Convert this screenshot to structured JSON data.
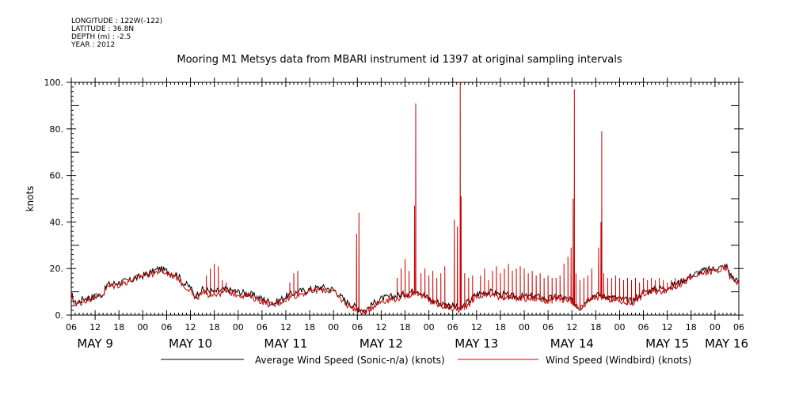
{
  "meta": {
    "longitude": "LONGITUDE : 122W(-122)",
    "latitude": "LATITUDE : 36.8N",
    "depth": "DEPTH (m) : -2.5",
    "year": "YEAR : 2012"
  },
  "chart_data": {
    "type": "line",
    "title": "Mooring M1 Metsys data from MBARI instrument id 1397 at original sampling intervals",
    "ylabel": "knots",
    "xlabel": "",
    "ylim": [
      0,
      100
    ],
    "yticks": [
      "0.",
      "20.",
      "40.",
      "60.",
      "80.",
      "100."
    ],
    "xlim_hours": [
      0,
      168
    ],
    "x_start": "2012-05-09T06:00",
    "hour_ticks": [
      "06",
      "12",
      "18",
      "00",
      "06",
      "12",
      "18",
      "00",
      "06",
      "12",
      "18",
      "00",
      "06",
      "12",
      "18",
      "00",
      "06",
      "12",
      "18",
      "00",
      "06",
      "12",
      "18",
      "00",
      "06",
      "12",
      "18",
      "00",
      "06"
    ],
    "day_labels": [
      {
        "label": "MAY   9",
        "hour": 6
      },
      {
        "label": "MAY 10",
        "hour": 30
      },
      {
        "label": "MAY 11",
        "hour": 54
      },
      {
        "label": "MAY 12",
        "hour": 78
      },
      {
        "label": "MAY 13",
        "hour": 102
      },
      {
        "label": "MAY 14",
        "hour": 126
      },
      {
        "label": "MAY 15",
        "hour": 150
      },
      {
        "label": "MAY 16",
        "hour": 168
      }
    ],
    "grid": false,
    "legend_position": "bottom",
    "series": [
      {
        "name": "Average Wind Speed (Sonic-n/a) (knots)",
        "color": "#000000",
        "base": [
          [
            0,
            9
          ],
          [
            1,
            5
          ],
          [
            3,
            7
          ],
          [
            6,
            8
          ],
          [
            8,
            9
          ],
          [
            9,
            13
          ],
          [
            12,
            14
          ],
          [
            15,
            15
          ],
          [
            18,
            17
          ],
          [
            21,
            19
          ],
          [
            22,
            20
          ],
          [
            24,
            19
          ],
          [
            27,
            17
          ],
          [
            28,
            14
          ],
          [
            30,
            12
          ],
          [
            31,
            8
          ],
          [
            33,
            11
          ],
          [
            36,
            10
          ],
          [
            39,
            11
          ],
          [
            42,
            10
          ],
          [
            45,
            9
          ],
          [
            48,
            7
          ],
          [
            51,
            5
          ],
          [
            54,
            8
          ],
          [
            57,
            10
          ],
          [
            60,
            11
          ],
          [
            63,
            12
          ],
          [
            66,
            11
          ],
          [
            69,
            6
          ],
          [
            72,
            3
          ],
          [
            74,
            2
          ],
          [
            76,
            5
          ],
          [
            78,
            7
          ],
          [
            81,
            8
          ],
          [
            84,
            9
          ],
          [
            87,
            11
          ],
          [
            90,
            7
          ],
          [
            93,
            5
          ],
          [
            96,
            4
          ],
          [
            98,
            3
          ],
          [
            100,
            6
          ],
          [
            102,
            9
          ],
          [
            105,
            10
          ],
          [
            108,
            9
          ],
          [
            111,
            8
          ],
          [
            114,
            8
          ],
          [
            117,
            8
          ],
          [
            120,
            7
          ],
          [
            123,
            8
          ],
          [
            126,
            6
          ],
          [
            128,
            3
          ],
          [
            130,
            7
          ],
          [
            132,
            9
          ],
          [
            135,
            8
          ],
          [
            138,
            7
          ],
          [
            141,
            6
          ],
          [
            144,
            10
          ],
          [
            147,
            11
          ],
          [
            150,
            12
          ],
          [
            153,
            14
          ],
          [
            156,
            17
          ],
          [
            159,
            19
          ],
          [
            162,
            20
          ],
          [
            165,
            21
          ],
          [
            166,
            17
          ],
          [
            168,
            14
          ]
        ],
        "peaks": [],
        "ticks": []
      },
      {
        "name": "Wind Speed (Windbird) (knots)",
        "color": "#cc0000",
        "base": [
          [
            0,
            9
          ],
          [
            1,
            4
          ],
          [
            3,
            6
          ],
          [
            6,
            8
          ],
          [
            8,
            9
          ],
          [
            9,
            12
          ],
          [
            12,
            13
          ],
          [
            15,
            15
          ],
          [
            18,
            17
          ],
          [
            21,
            18
          ],
          [
            22,
            19
          ],
          [
            24,
            18
          ],
          [
            27,
            16
          ],
          [
            28,
            13
          ],
          [
            30,
            11
          ],
          [
            31,
            7
          ],
          [
            33,
            9
          ],
          [
            36,
            9
          ],
          [
            39,
            10
          ],
          [
            42,
            9
          ],
          [
            45,
            8
          ],
          [
            48,
            6
          ],
          [
            51,
            4
          ],
          [
            54,
            7
          ],
          [
            57,
            9
          ],
          [
            60,
            10
          ],
          [
            63,
            11
          ],
          [
            66,
            10
          ],
          [
            69,
            5
          ],
          [
            72,
            2
          ],
          [
            74,
            1
          ],
          [
            76,
            4
          ],
          [
            78,
            6
          ],
          [
            81,
            7
          ],
          [
            84,
            8
          ],
          [
            87,
            10
          ],
          [
            90,
            6
          ],
          [
            93,
            4
          ],
          [
            96,
            3
          ],
          [
            98,
            2
          ],
          [
            100,
            5
          ],
          [
            102,
            8
          ],
          [
            105,
            9
          ],
          [
            108,
            8
          ],
          [
            111,
            7
          ],
          [
            114,
            7
          ],
          [
            117,
            7
          ],
          [
            120,
            6
          ],
          [
            123,
            7
          ],
          [
            126,
            5
          ],
          [
            128,
            2
          ],
          [
            130,
            6
          ],
          [
            132,
            8
          ],
          [
            135,
            7
          ],
          [
            138,
            6
          ],
          [
            141,
            5
          ],
          [
            144,
            9
          ],
          [
            147,
            10
          ],
          [
            150,
            11
          ],
          [
            153,
            13
          ],
          [
            156,
            16
          ],
          [
            159,
            18
          ],
          [
            162,
            19
          ],
          [
            165,
            20
          ],
          [
            166,
            16
          ],
          [
            168,
            14
          ]
        ],
        "peaks": [
          [
            71.8,
            35
          ],
          [
            72.4,
            44
          ],
          [
            86.4,
            47
          ],
          [
            86.7,
            91
          ],
          [
            96.4,
            41
          ],
          [
            97.2,
            38
          ],
          [
            97.9,
            100
          ],
          [
            98.1,
            51
          ],
          [
            125.8,
            29
          ],
          [
            126.3,
            50
          ],
          [
            126.6,
            97
          ],
          [
            132.7,
            29
          ],
          [
            133.3,
            40
          ],
          [
            133.5,
            79
          ]
        ],
        "ticks": [
          [
            34,
            17
          ],
          [
            35,
            20
          ],
          [
            36,
            22
          ],
          [
            37,
            21
          ],
          [
            38,
            15
          ],
          [
            39,
            14
          ],
          [
            55,
            14
          ],
          [
            56,
            18
          ],
          [
            57,
            19
          ],
          [
            82,
            16
          ],
          [
            83,
            20
          ],
          [
            84,
            24
          ],
          [
            85,
            19
          ],
          [
            88,
            18
          ],
          [
            89,
            20
          ],
          [
            90,
            17
          ],
          [
            91,
            19
          ],
          [
            92,
            16
          ],
          [
            93,
            18
          ],
          [
            94,
            21
          ],
          [
            99,
            18
          ],
          [
            100,
            16
          ],
          [
            101,
            17
          ],
          [
            103,
            17
          ],
          [
            104,
            20
          ],
          [
            105,
            15
          ],
          [
            106,
            19
          ],
          [
            107,
            21
          ],
          [
            108,
            18
          ],
          [
            109,
            20
          ],
          [
            110,
            22
          ],
          [
            111,
            19
          ],
          [
            112,
            20
          ],
          [
            113,
            21
          ],
          [
            114,
            20
          ],
          [
            115,
            18
          ],
          [
            116,
            19
          ],
          [
            117,
            17
          ],
          [
            118,
            18
          ],
          [
            119,
            16
          ],
          [
            120,
            17
          ],
          [
            121,
            16
          ],
          [
            122,
            16
          ],
          [
            123,
            17
          ],
          [
            124,
            22
          ],
          [
            125,
            25
          ],
          [
            127,
            18
          ],
          [
            128,
            15
          ],
          [
            129,
            16
          ],
          [
            130,
            17
          ],
          [
            131,
            20
          ],
          [
            134,
            18
          ],
          [
            135,
            16
          ],
          [
            136,
            16
          ],
          [
            137,
            17
          ],
          [
            138,
            16
          ],
          [
            139,
            15
          ],
          [
            140,
            16
          ],
          [
            141,
            15
          ],
          [
            142,
            16
          ],
          [
            143,
            14
          ],
          [
            144,
            16
          ],
          [
            145,
            15
          ],
          [
            146,
            16
          ],
          [
            147,
            15
          ],
          [
            148,
            16
          ],
          [
            149,
            15
          ],
          [
            150,
            14
          ],
          [
            151,
            15
          ],
          [
            152,
            16
          ],
          [
            153,
            15
          ],
          [
            154,
            16
          ],
          [
            155,
            16
          ]
        ]
      }
    ]
  }
}
